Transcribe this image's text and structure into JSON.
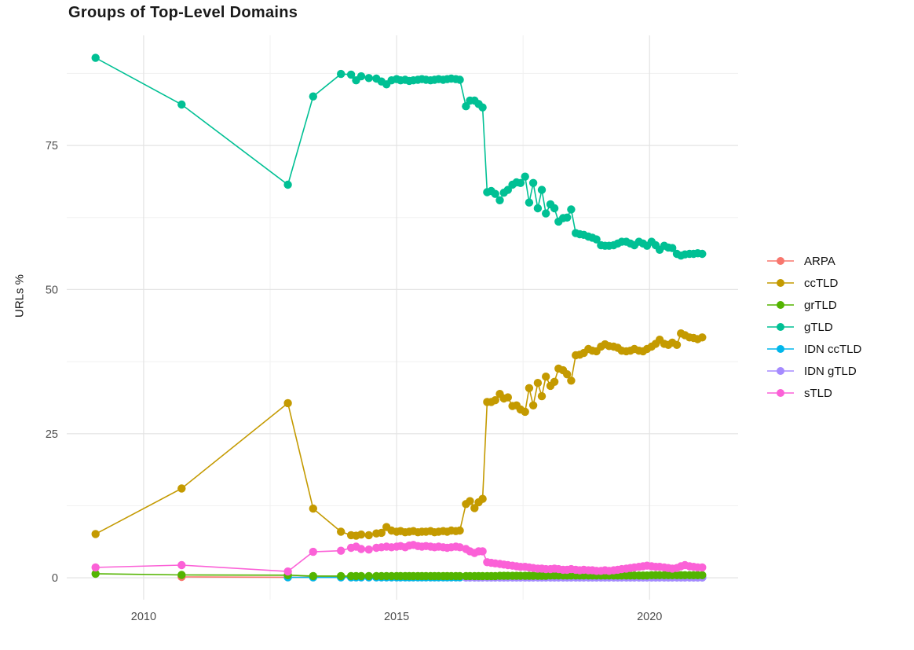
{
  "chart_data": {
    "type": "line",
    "title": "Groups of Top-Level Domains",
    "xlabel": "",
    "ylabel": "URLs %",
    "grid": "on",
    "legend_position": "right",
    "x_domain": [
      2008.48,
      2021.75
    ],
    "y_domain": [
      -3.8,
      94.1
    ],
    "x_ticks": [
      {
        "v": 2010,
        "label": "2010"
      },
      {
        "v": 2015,
        "label": "2015"
      },
      {
        "v": 2020,
        "label": "2020"
      }
    ],
    "x_minor": [
      2012.5,
      2017.5
    ],
    "y_ticks": [
      {
        "v": 0,
        "label": "0"
      },
      {
        "v": 25,
        "label": "25"
      },
      {
        "v": 50,
        "label": "50"
      },
      {
        "v": 75,
        "label": "75"
      }
    ],
    "y_minor": [
      12.5,
      37.5,
      62.5,
      87.5
    ],
    "x_grid": [
      2009.05,
      2010.75,
      2012.85,
      2013.35,
      2013.9,
      2014.1,
      2014.2,
      2014.3,
      2014.45,
      2014.6,
      2014.7,
      2014.8,
      2014.9,
      2015.0,
      2015.08,
      2015.17,
      2015.25,
      2015.33,
      2015.42,
      2015.5,
      2015.58,
      2015.67,
      2015.75,
      2015.83,
      2015.92,
      2016.0,
      2016.08,
      2016.17,
      2016.25,
      2016.37,
      2016.45,
      2016.54,
      2016.62,
      2016.7,
      2016.79,
      2016.87,
      2016.95,
      2017.04,
      2017.12,
      2017.2,
      2017.29,
      2017.37,
      2017.45,
      2017.54,
      2017.62,
      2017.7,
      2017.79,
      2017.87,
      2017.95,
      2018.04,
      2018.12,
      2018.2,
      2018.29,
      2018.37,
      2018.45,
      2018.54,
      2018.62,
      2018.7,
      2018.79,
      2018.87,
      2018.95,
      2019.04,
      2019.12,
      2019.2,
      2019.29,
      2019.37,
      2019.45,
      2019.54,
      2019.62,
      2019.7,
      2019.79,
      2019.87,
      2019.95,
      2020.04,
      2020.12,
      2020.2,
      2020.29,
      2020.37,
      2020.45,
      2020.54,
      2020.62,
      2020.7,
      2020.79,
      2020.87,
      2020.95,
      2021.04
    ],
    "draw_order": [
      0,
      4,
      5,
      1,
      2,
      3,
      6
    ],
    "series": [
      {
        "name": "ARPA",
        "color": "#F8766D",
        "start_index": 1,
        "values": [
          0.15,
          0.1,
          0.1,
          0.1,
          0.1,
          0.1,
          0.1,
          0.1,
          0.1,
          0.1,
          0.1,
          0.1,
          0.1,
          0.1,
          0.1,
          0.1,
          0.1,
          0.1,
          0.1,
          0.1,
          0.1,
          0.1,
          0.1,
          0.1,
          0.1,
          0.1,
          0.1,
          0.1,
          0.1,
          0.1,
          0.1,
          0.1,
          0.1,
          0.1,
          0.1,
          0.1,
          0.1,
          0.1,
          0.1,
          0.1,
          0.1,
          0.1,
          0.1,
          0.1,
          0.1,
          0.1,
          0.1,
          0.1,
          0.1,
          0.1,
          0.1,
          0.1,
          0.1,
          0.1,
          0.1,
          0.1,
          0.1,
          0.1,
          0.1,
          0.1,
          0.1,
          0.1,
          0.1,
          0.1,
          0.1,
          0.1,
          0.1,
          0.1,
          0.1,
          0.1,
          0.1,
          0.1,
          0.1,
          0.1,
          0.1,
          0.1,
          0.1,
          0.1,
          0.1,
          0.1,
          0.1,
          0.1,
          0.1,
          0.1,
          0.1
        ]
      },
      {
        "name": "ccTLD",
        "color": "#C49A00",
        "start_index": 0,
        "values": [
          7.6,
          15.5,
          30.3,
          12.0,
          8.0,
          7.4,
          7.3,
          7.5,
          7.4,
          7.7,
          7.8,
          8.8,
          8.2,
          8.0,
          8.1,
          7.9,
          8.0,
          8.1,
          7.9,
          8.0,
          8.0,
          8.1,
          7.9,
          8.0,
          8.1,
          8.0,
          8.2,
          8.1,
          8.2,
          12.8,
          13.3,
          12.1,
          13.1,
          13.7,
          30.5,
          30.5,
          30.8,
          31.9,
          31.1,
          31.3,
          29.8,
          29.9,
          29.2,
          28.8,
          32.9,
          29.9,
          33.8,
          31.5,
          34.9,
          33.3,
          34.0,
          36.3,
          36.0,
          35.3,
          34.2,
          38.6,
          38.7,
          39.0,
          39.7,
          39.4,
          39.3,
          40.1,
          40.5,
          40.2,
          40.1,
          39.9,
          39.4,
          39.3,
          39.4,
          39.7,
          39.4,
          39.3,
          39.7,
          40.1,
          40.6,
          41.3,
          40.6,
          40.4,
          40.8,
          40.4,
          42.4,
          42.1,
          41.7,
          41.6,
          41.4,
          41.7
        ]
      },
      {
        "name": "grTLD",
        "color": "#53B400",
        "start_index": 0,
        "values": [
          0.7,
          0.5,
          0.45,
          0.3,
          0.3,
          0.3,
          0.3,
          0.3,
          0.3,
          0.3,
          0.3,
          0.3,
          0.3,
          0.3,
          0.3,
          0.3,
          0.3,
          0.3,
          0.3,
          0.3,
          0.3,
          0.3,
          0.3,
          0.3,
          0.3,
          0.3,
          0.3,
          0.3,
          0.3,
          0.3,
          0.3,
          0.3,
          0.3,
          0.3,
          0.3,
          0.3,
          0.3,
          0.35,
          0.35,
          0.35,
          0.35,
          0.35,
          0.35,
          0.35,
          0.35,
          0.35,
          0.35,
          0.35,
          0.35,
          0.4,
          0.4,
          0.4,
          0.4,
          0.4,
          0.4,
          0.4,
          0.4,
          0.4,
          0.4,
          0.4,
          0.4,
          0.4,
          0.4,
          0.4,
          0.4,
          0.4,
          0.4,
          0.4,
          0.4,
          0.4,
          0.4,
          0.4,
          0.4,
          0.45,
          0.45,
          0.45,
          0.45,
          0.45,
          0.45,
          0.45,
          0.45,
          0.45,
          0.45,
          0.45,
          0.45,
          0.45
        ]
      },
      {
        "name": "gTLD",
        "color": "#00C094",
        "start_index": 0,
        "values": [
          90.2,
          82.1,
          68.2,
          83.5,
          87.4,
          87.3,
          86.3,
          87.0,
          86.7,
          86.6,
          86.1,
          85.6,
          86.3,
          86.5,
          86.3,
          86.4,
          86.2,
          86.3,
          86.4,
          86.5,
          86.4,
          86.3,
          86.4,
          86.5,
          86.4,
          86.5,
          86.6,
          86.5,
          86.4,
          81.8,
          82.8,
          82.8,
          82.2,
          81.6,
          66.9,
          67.1,
          66.6,
          65.5,
          66.8,
          67.3,
          68.2,
          68.6,
          68.5,
          69.6,
          65.1,
          68.5,
          64.1,
          67.3,
          63.2,
          64.8,
          64.1,
          61.8,
          62.4,
          62.5,
          63.9,
          59.8,
          59.6,
          59.5,
          59.2,
          59.0,
          58.7,
          57.7,
          57.6,
          57.6,
          57.7,
          58.0,
          58.3,
          58.3,
          58.0,
          57.7,
          58.3,
          58.0,
          57.6,
          58.3,
          57.7,
          56.9,
          57.6,
          57.3,
          57.2,
          56.2,
          55.9,
          56.1,
          56.2,
          56.2,
          56.3,
          56.2
        ]
      },
      {
        "name": "IDN ccTLD",
        "color": "#00B6EB",
        "start_index": 2,
        "values": [
          0.1,
          0.07,
          0.07,
          0.07,
          0.07,
          0.07,
          0.07,
          0.07,
          0.07,
          0.07,
          0.07,
          0.07,
          0.07,
          0.07,
          0.07,
          0.07,
          0.07,
          0.07,
          0.07,
          0.07,
          0.07,
          0.07,
          0.07,
          0.07,
          0.07,
          0.07,
          0.07,
          0.07,
          0.07,
          0.07,
          0.07,
          0.07,
          0.07,
          0.07,
          0.07,
          0.07,
          0.07,
          0.07,
          0.07,
          0.07,
          0.07,
          0.07,
          0.07,
          0.07,
          0.07,
          0.07,
          0.07,
          0.07,
          0.07,
          0.07,
          0.07,
          0.07,
          0.07,
          0.07,
          0.07,
          0.07,
          0.07,
          0.07,
          0.07,
          0.07,
          0.07,
          0.07,
          0.07,
          0.07,
          0.07,
          0.07,
          0.07,
          0.07,
          0.07,
          0.07,
          0.07,
          0.07,
          0.07,
          0.07,
          0.07,
          0.07,
          0.07,
          0.07,
          0.07,
          0.07,
          0.07,
          0.07,
          0.07,
          0.07
        ]
      },
      {
        "name": "IDN gTLD",
        "color": "#A58AFF",
        "start_index": 29,
        "values": [
          0.05,
          0.05,
          0.05,
          0.05,
          0.05,
          0.05,
          0.05,
          0.05,
          0.05,
          0.05,
          0.05,
          0.05,
          0.05,
          0.05,
          0.05,
          0.05,
          0.05,
          0.05,
          0.05,
          0.05,
          0.05,
          0.05,
          0.05,
          0.05,
          0.05,
          0.05,
          0.05,
          0.05,
          0.05,
          0.05,
          0.05,
          0.05,
          0.05,
          0.05,
          0.05,
          0.05,
          0.05,
          0.05,
          0.05,
          0.05,
          0.05,
          0.05,
          0.05,
          0.05,
          0.05,
          0.05,
          0.05,
          0.05,
          0.05,
          0.05,
          0.05,
          0.05,
          0.05,
          0.05,
          0.05,
          0.05,
          0.05
        ]
      },
      {
        "name": "sTLD",
        "color": "#FB61D7",
        "start_index": 0,
        "values": [
          1.8,
          2.2,
          1.1,
          4.5,
          4.7,
          5.2,
          5.4,
          5.0,
          4.9,
          5.2,
          5.3,
          5.4,
          5.3,
          5.4,
          5.5,
          5.3,
          5.6,
          5.7,
          5.5,
          5.4,
          5.5,
          5.4,
          5.3,
          5.4,
          5.3,
          5.2,
          5.3,
          5.4,
          5.3,
          5.0,
          4.6,
          4.3,
          4.6,
          4.6,
          2.7,
          2.6,
          2.5,
          2.4,
          2.3,
          2.2,
          2.1,
          2.0,
          1.9,
          1.9,
          1.8,
          1.7,
          1.6,
          1.6,
          1.5,
          1.5,
          1.6,
          1.5,
          1.4,
          1.4,
          1.5,
          1.4,
          1.3,
          1.4,
          1.3,
          1.3,
          1.2,
          1.2,
          1.3,
          1.2,
          1.3,
          1.4,
          1.5,
          1.6,
          1.7,
          1.8,
          1.9,
          2.0,
          2.1,
          2.0,
          1.9,
          1.9,
          1.8,
          1.7,
          1.6,
          1.7,
          2.0,
          2.2,
          2.0,
          1.9,
          1.8,
          1.8
        ]
      }
    ],
    "style": {
      "major_grid_color": "#e3e3e3",
      "minor_grid_color": "#f1f1f1",
      "tick_label_color": "#4d4d4d",
      "point_radius": 5.2,
      "line_width": 1.6
    }
  }
}
